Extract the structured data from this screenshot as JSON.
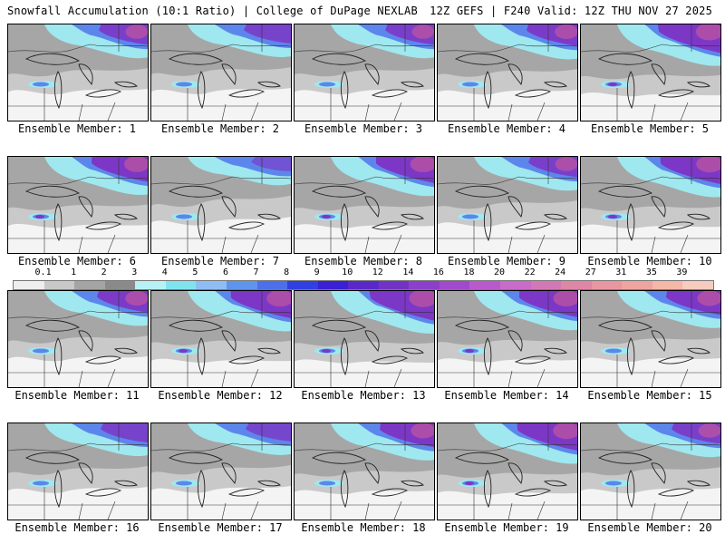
{
  "header": {
    "left": "Snowfall Accumulation (10:1 Ratio) | College of DuPage NEXLAB",
    "right": "12Z GEFS | F240 Valid: 12Z THU NOV 27 2025"
  },
  "members": [
    {
      "label": "Ensemble Member: 1",
      "intensity": 0.55
    },
    {
      "label": "Ensemble Member: 2",
      "intensity": 0.5
    },
    {
      "label": "Ensemble Member: 3",
      "intensity": 0.55
    },
    {
      "label": "Ensemble Member: 4",
      "intensity": 0.6
    },
    {
      "label": "Ensemble Member: 5",
      "intensity": 0.9
    },
    {
      "label": "Ensemble Member: 6",
      "intensity": 0.75
    },
    {
      "label": "Ensemble Member: 7",
      "intensity": 0.3
    },
    {
      "label": "Ensemble Member: 8",
      "intensity": 0.8
    },
    {
      "label": "Ensemble Member: 9",
      "intensity": 0.55
    },
    {
      "label": "Ensemble Member: 10",
      "intensity": 0.85
    },
    {
      "label": "Ensemble Member: 11",
      "intensity": 0.6
    },
    {
      "label": "Ensemble Member: 12",
      "intensity": 0.85
    },
    {
      "label": "Ensemble Member: 13",
      "intensity": 0.95
    },
    {
      "label": "Ensemble Member: 14",
      "intensity": 0.8
    },
    {
      "label": "Ensemble Member: 15",
      "intensity": 0.7
    },
    {
      "label": "Ensemble Member: 16",
      "intensity": 0.5
    },
    {
      "label": "Ensemble Member: 17",
      "intensity": 0.45
    },
    {
      "label": "Ensemble Member: 18",
      "intensity": 0.7
    },
    {
      "label": "Ensemble Member: 19",
      "intensity": 0.85
    },
    {
      "label": "Ensemble Member: 20",
      "intensity": 0.55
    }
  ],
  "legend": {
    "ticks": [
      "0.1",
      "1",
      "2",
      "3",
      "4",
      "5",
      "6",
      "7",
      "8",
      "9",
      "10",
      "12",
      "14",
      "16",
      "18",
      "20",
      "22",
      "24",
      "27",
      "31",
      "35",
      "39"
    ],
    "colors": [
      "#eeeeee",
      "#c8c8c8",
      "#a4a4a4",
      "#8a8a8a",
      "#b6f2f5",
      "#7fe4ee",
      "#8ebdf3",
      "#5f94ec",
      "#4e6fea",
      "#2f3fe0",
      "#3b1fd4",
      "#5a28c9",
      "#7133c4",
      "#8c3fc8",
      "#a14acb",
      "#b85acc",
      "#c86bc9",
      "#d378b6",
      "#de86a6",
      "#e896a0",
      "#efa59f",
      "#f5b7a8",
      "#f7cbbd"
    ]
  },
  "colors": {
    "ground": "#f4f4f4",
    "light_gray": "#c9c9c9",
    "gray": "#9a9a9a",
    "cyan": "#9fe8ef",
    "blue": "#5d86ec",
    "purple": "#7c37c6",
    "magenta": "#c0579e"
  }
}
